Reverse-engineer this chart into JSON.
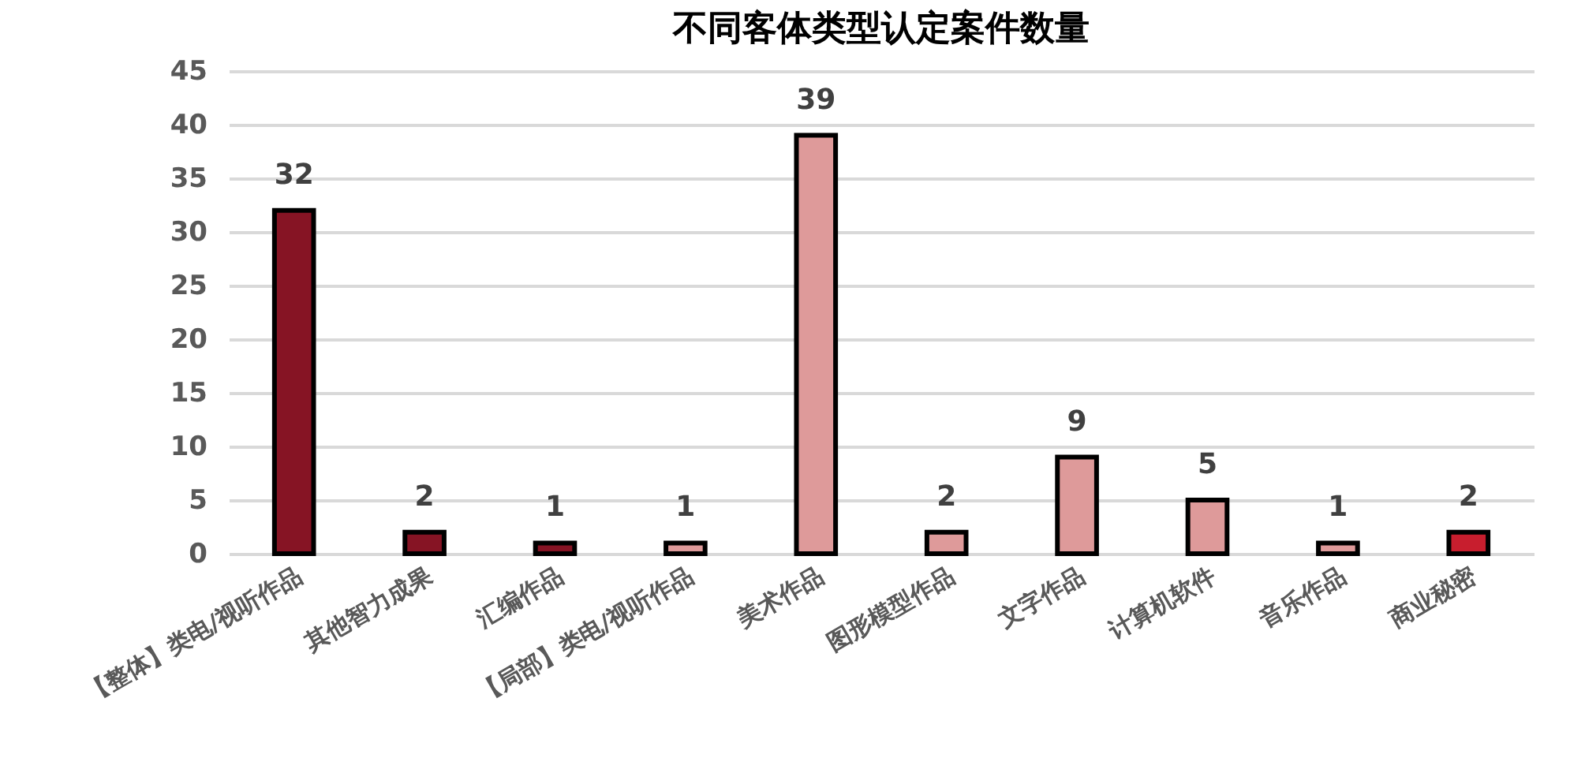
{
  "chart_data": {
    "type": "bar",
    "title": "不同客体类型认定案件数量",
    "categories": [
      "【整体】类电/视听作品",
      "其他智力成果",
      "汇编作品",
      "【局部】类电/视听作品",
      "美术作品",
      "图形模型作品",
      "文字作品",
      "计算机软件",
      "音乐作品",
      "商业秘密"
    ],
    "values": [
      32,
      2,
      1,
      1,
      39,
      2,
      9,
      5,
      1,
      2
    ],
    "colors": [
      "#861424",
      "#861424",
      "#861424",
      "#de9a9a",
      "#de9a9a",
      "#de9a9a",
      "#de9a9a",
      "#de9a9a",
      "#de9a9a",
      "#c81e2e"
    ],
    "ylim": [
      0,
      45
    ],
    "yticks": [
      0,
      5,
      10,
      15,
      20,
      25,
      30,
      35,
      40,
      45
    ],
    "grid": "y",
    "data_labels": true
  }
}
